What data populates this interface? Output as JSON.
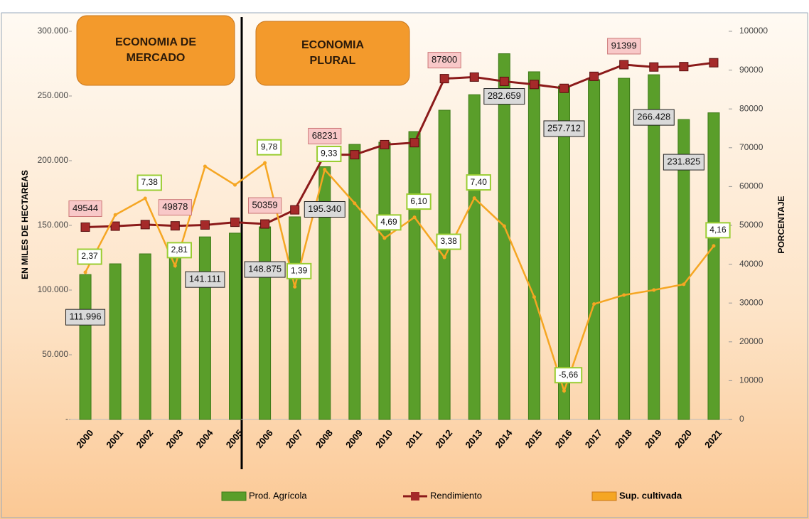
{
  "chart_data": {
    "type": "bar",
    "annotations": [
      "ECONOMIA DE MERCADO",
      "ECONOMIA PLURAL"
    ],
    "y_label": "EN MILES DE HECTAREAS",
    "y2_label": "PORCENTAJE",
    "categories": [
      "2000",
      "2001",
      "2002",
      "2003",
      "2004",
      "2005",
      "2006",
      "2007",
      "2008",
      "2009",
      "2010",
      "2011",
      "2012",
      "2013",
      "2014",
      "2015",
      "2016",
      "2017",
      "2018",
      "2019",
      "2020",
      "2021"
    ],
    "ylim": [
      0,
      300000
    ],
    "yticks": [
      {
        "value": 0,
        "label": "-"
      },
      {
        "value": 50000,
        "label": "50.000"
      },
      {
        "value": 100000,
        "label": "100.000"
      },
      {
        "value": 150000,
        "label": "150.000"
      },
      {
        "value": 200000,
        "label": "200.000"
      },
      {
        "value": 250000,
        "label": "250.000"
      },
      {
        "value": 300000,
        "label": "300.000"
      }
    ],
    "y2lim": [
      0,
      100000
    ],
    "y2ticks": [
      0,
      10000,
      20000,
      30000,
      40000,
      50000,
      60000,
      70000,
      80000,
      90000,
      100000
    ],
    "y3lim": [
      -7.6,
      18.7
    ],
    "series": [
      {
        "name": "Prod. Agrícola",
        "type": "bar",
        "color": "#5a9e2a",
        "values": [
          111996,
          120300,
          128000,
          134000,
          141111,
          144000,
          148875,
          156600,
          195340,
          212600,
          214300,
          222500,
          239000,
          251000,
          282659,
          268700,
          257712,
          262600,
          263700,
          266428,
          231825,
          237000
        ],
        "value_labels": [
          "111.996",
          null,
          null,
          null,
          "141.111",
          null,
          "148.875",
          null,
          "195.340",
          null,
          null,
          null,
          null,
          null,
          "282.659",
          null,
          "257.712",
          null,
          null,
          "266.428",
          "231.825",
          null
        ]
      },
      {
        "name": "Rendimiento",
        "type": "line",
        "axis": "y2",
        "color": "#8b1a1a",
        "values": [
          49544,
          49800,
          50200,
          49878,
          50100,
          50800,
          50359,
          54000,
          68231,
          68200,
          70800,
          71300,
          87800,
          88200,
          87100,
          86300,
          85300,
          88400,
          91399,
          90800,
          90900,
          91900
        ],
        "value_labels": [
          "49544",
          null,
          null,
          "49878",
          null,
          null,
          "50359",
          null,
          "68231",
          null,
          null,
          null,
          "87800",
          null,
          null,
          null,
          null,
          null,
          "91399",
          null,
          null,
          null
        ]
      },
      {
        "name": "Sup. cultivada",
        "type": "line",
        "axis": "y3",
        "color": "#f5a623",
        "values": [
          2.37,
          6.26,
          7.38,
          2.81,
          9.55,
          8.29,
          9.78,
          1.39,
          9.33,
          7.05,
          4.69,
          6.1,
          3.38,
          7.4,
          5.5,
          0.7,
          -5.66,
          0.22,
          0.83,
          1.17,
          1.56,
          4.16
        ],
        "value_labels": [
          "2,37",
          null,
          "7,38",
          "2,81",
          null,
          null,
          "9,78",
          "1,39",
          "9,33",
          null,
          "4,69",
          "6,10",
          "3,38",
          "7,40",
          null,
          null,
          "-5,66",
          null,
          null,
          null,
          null,
          "4,16"
        ]
      }
    ]
  }
}
